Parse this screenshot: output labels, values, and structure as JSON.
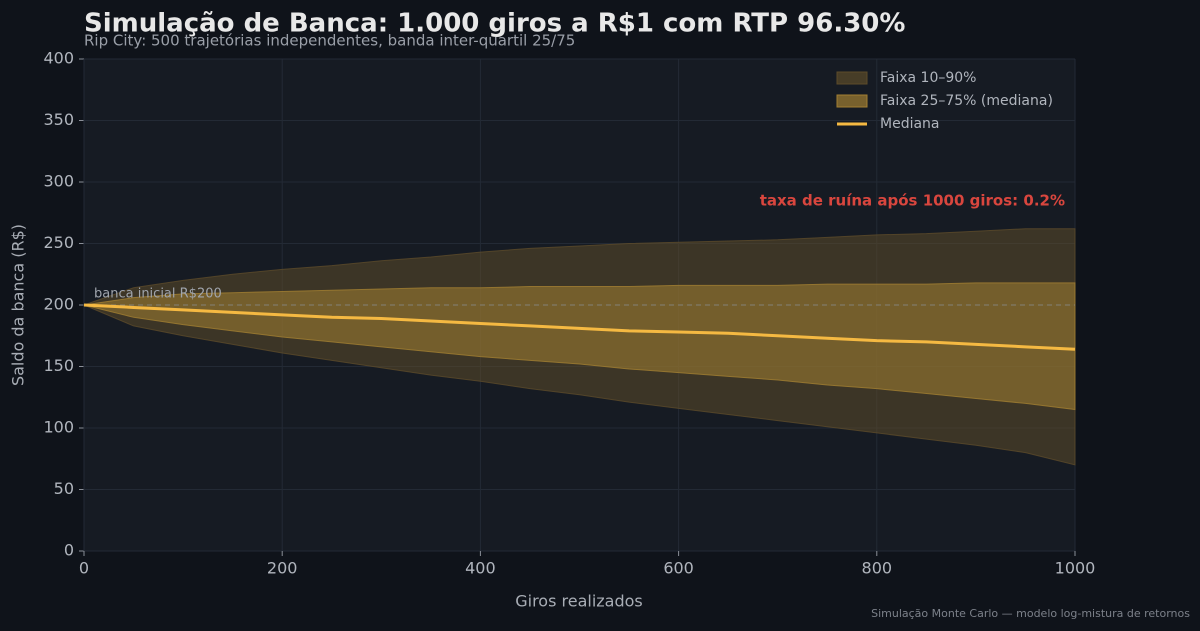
{
  "chart_data": {
    "type": "fan",
    "title": "Simulação de Banca: 1.000 giros a R$1 com RTP 96.30%",
    "subtitle": "Rip City: 500 trajetórias independentes, banda inter-quartil 25/75",
    "x_label": "Giros realizados",
    "y_label": "Saldo da banca (R$)",
    "footer": "Simulação Monte Carlo — modelo log-mistura de retornos",
    "annotation": "taxa de ruína após 1000 giros: 0.2%",
    "reference_line": {
      "value": 200,
      "label": "banca inicial R$200"
    },
    "x": [
      0,
      50,
      100,
      150,
      200,
      250,
      300,
      350,
      400,
      450,
      500,
      550,
      600,
      650,
      700,
      750,
      800,
      850,
      900,
      950,
      1000
    ],
    "bands": [
      {
        "name": "Faixa 10–90%",
        "color": "#5c4b2a",
        "lower": [
          200,
          183,
          175,
          168,
          161,
          155,
          149,
          143,
          138,
          132,
          127,
          121,
          116,
          111,
          106,
          101,
          96,
          91,
          86,
          80,
          70
        ],
        "upper": [
          200,
          214,
          220,
          225,
          229,
          232,
          236,
          239,
          243,
          246,
          248,
          250,
          251,
          252,
          253,
          255,
          257,
          258,
          260,
          262,
          262
        ]
      },
      {
        "name": "Faixa 25–75% (mediana)",
        "color": "#a37f32",
        "lower": [
          200,
          190,
          184,
          179,
          174,
          170,
          166,
          162,
          158,
          155,
          152,
          148,
          145,
          142,
          139,
          135,
          132,
          128,
          124,
          120,
          115
        ],
        "upper": [
          200,
          206,
          209,
          210,
          211,
          212,
          213,
          214,
          214,
          215,
          215,
          215,
          216,
          216,
          216,
          217,
          217,
          217,
          218,
          218,
          218
        ]
      }
    ],
    "series": [
      {
        "name": "Mediana",
        "color": "#f5b942",
        "values": [
          200,
          198,
          196,
          194,
          192,
          190,
          189,
          187,
          185,
          183,
          181,
          179,
          178,
          177,
          175,
          173,
          171,
          170,
          168,
          166,
          164
        ]
      }
    ],
    "xlim": [
      0,
      1000
    ],
    "xticks": [
      0,
      200,
      400,
      600,
      800,
      1000
    ],
    "ylim": [
      0,
      400
    ],
    "yticks": [
      0,
      50,
      100,
      150,
      200,
      250,
      300,
      350,
      400
    ],
    "grid": true,
    "legend": "upper right"
  }
}
